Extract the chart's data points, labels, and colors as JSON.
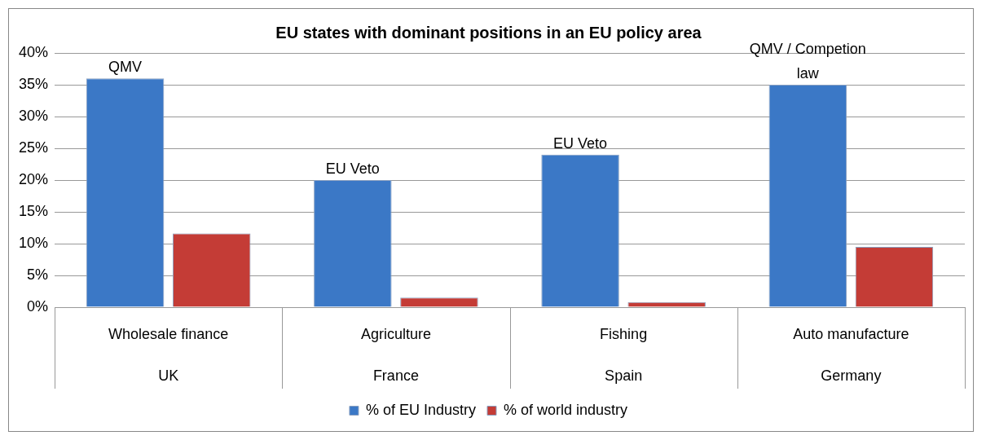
{
  "chart_data": {
    "type": "bar",
    "title": "EU states with dominant positions in an EU policy area",
    "categories": [
      "Wholesale finance\nUK",
      "Agriculture\nFrance",
      "Fishing\nSpain",
      "Auto manufacture\nGermany"
    ],
    "series": [
      {
        "name": "% of EU Industry",
        "color": "#3b78c6",
        "values": [
          36,
          20,
          24,
          35
        ]
      },
      {
        "name": "% of world industry",
        "color": "#c43c36",
        "values": [
          11.6,
          1.5,
          0.8,
          9.5
        ]
      }
    ],
    "ylim": [
      0,
      40
    ],
    "yticks": [
      {
        "value": 0,
        "label": "0%"
      },
      {
        "value": 5,
        "label": "5%"
      },
      {
        "value": 10,
        "label": "10%"
      },
      {
        "value": 15,
        "label": "15%"
      },
      {
        "value": 20,
        "label": "20%"
      },
      {
        "value": 25,
        "label": "25%"
      },
      {
        "value": 30,
        "label": "30%"
      },
      {
        "value": 35,
        "label": "35%"
      },
      {
        "value": 40,
        "label": "40%"
      }
    ],
    "grid": "y",
    "legend": "bottom",
    "annotations": [
      "QMV",
      "EU Veto",
      "EU Veto",
      "QMV / Competion law"
    ]
  }
}
